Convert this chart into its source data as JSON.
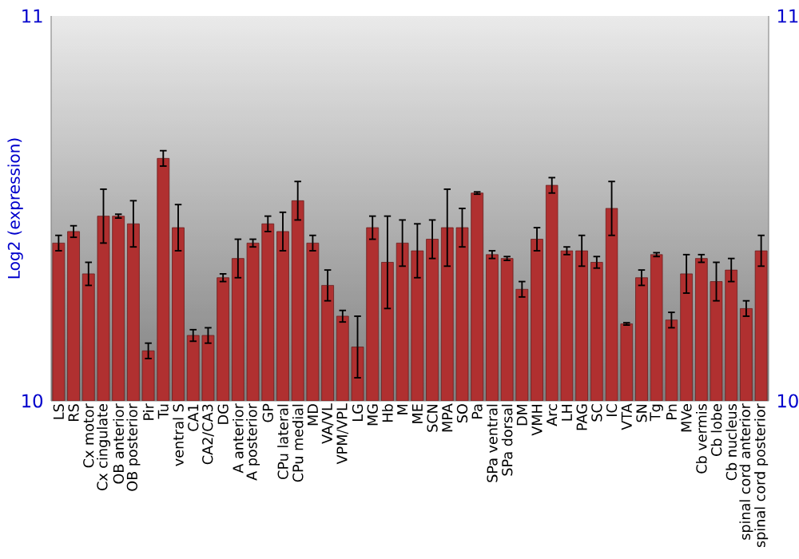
{
  "chart_data": {
    "type": "bar",
    "ylabel": "Log2 (expression)",
    "categories": [
      "LS",
      "RS",
      "Cx motor",
      "Cx cingulate",
      "OB anterior",
      "OB posterior",
      "Pir",
      "Tu",
      "ventral S",
      "CA1",
      "CA2/CA3",
      "DG",
      "A anterior",
      "A posterior",
      "GP",
      "CPu lateral",
      "CPu medial",
      "MD",
      "VA/VL",
      "VPM/VPL",
      "LG",
      "MG",
      "Hb",
      "M",
      "ME",
      "SCN",
      "MPA",
      "SO",
      "Pa",
      "SPa ventral",
      "SPa dorsal",
      "DM",
      "VMH",
      "Arc",
      "LH",
      "PAG",
      "SC",
      "IC",
      "VTA",
      "SN",
      "Tg",
      "Pn",
      "MVe",
      "Cb vermis",
      "Cb lobe",
      "Cb nucleus",
      "spinal cord anterior",
      "spinal cord posterior"
    ],
    "values": [
      10.41,
      10.44,
      10.33,
      10.48,
      10.48,
      10.46,
      10.13,
      10.63,
      10.45,
      10.17,
      10.17,
      10.32,
      10.37,
      10.41,
      10.46,
      10.44,
      10.52,
      10.41,
      10.3,
      10.22,
      10.14,
      10.45,
      10.36,
      10.41,
      10.39,
      10.42,
      10.45,
      10.45,
      10.54,
      10.38,
      10.37,
      10.29,
      10.42,
      10.56,
      10.39,
      10.39,
      10.36,
      10.5,
      10.2,
      10.32,
      10.38,
      10.21,
      10.33,
      10.37,
      10.31,
      10.34,
      10.24,
      10.39
    ],
    "errors": [
      0.02,
      0.015,
      0.03,
      0.07,
      0.005,
      0.06,
      0.02,
      0.02,
      0.06,
      0.015,
      0.02,
      0.01,
      0.05,
      0.01,
      0.02,
      0.05,
      0.05,
      0.02,
      0.04,
      0.015,
      0.08,
      0.03,
      0.12,
      0.06,
      0.07,
      0.05,
      0.1,
      0.05,
      0.003,
      0.01,
      0.005,
      0.02,
      0.03,
      0.02,
      0.01,
      0.04,
      0.015,
      0.07,
      0.003,
      0.02,
      0.005,
      0.02,
      0.05,
      0.01,
      0.05,
      0.03,
      0.02,
      0.04
    ],
    "color": "#b03030",
    "ylim": [
      10,
      11
    ],
    "yticks": [
      10,
      11
    ],
    "y2lim": [
      10,
      11
    ],
    "y2ticks": [
      10,
      11
    ]
  }
}
